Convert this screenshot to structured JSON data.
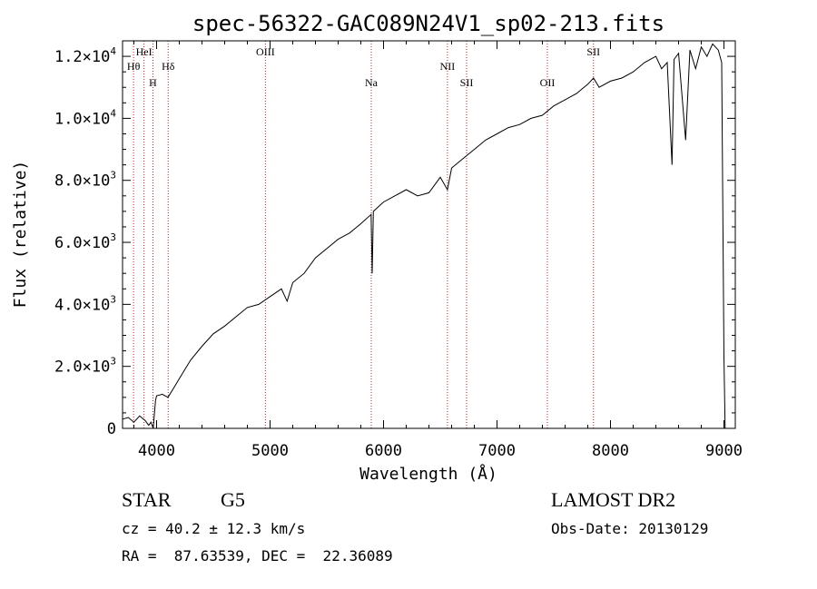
{
  "chart_data": {
    "type": "line",
    "title": "spec-56322-GAC089N24V1_sp02-213.fits",
    "xlabel": "Wavelength (Å)",
    "ylabel": "Flux (relative)",
    "xlim": [
      3700,
      9100
    ],
    "ylim": [
      0,
      12500
    ],
    "x_ticks": [
      4000,
      5000,
      6000,
      7000,
      8000,
      9000
    ],
    "y_ticks": [
      {
        "value": 0,
        "mant": "0",
        "exp": ""
      },
      {
        "value": 2000,
        "mant": "2.0×10",
        "exp": "3"
      },
      {
        "value": 4000,
        "mant": "4.0×10",
        "exp": "3"
      },
      {
        "value": 6000,
        "mant": "6.0×10",
        "exp": "3"
      },
      {
        "value": 8000,
        "mant": "8.0×10",
        "exp": "3"
      },
      {
        "value": 10000,
        "mant": "1.0×10",
        "exp": "4"
      },
      {
        "value": 12000,
        "mant": "1.2×10",
        "exp": "4"
      }
    ],
    "series": [
      {
        "x": [
          3700,
          3750,
          3800,
          3850,
          3900,
          3930,
          3950,
          3970,
          3990,
          4000,
          4050,
          4100,
          4150,
          4200,
          4300,
          4400,
          4500,
          4600,
          4700,
          4800,
          4900,
          5000,
          5100,
          5150,
          5200,
          5300,
          5400,
          5500,
          5600,
          5700,
          5800,
          5890,
          5900,
          5910,
          6000,
          6100,
          6200,
          6300,
          6400,
          6500,
          6563,
          6600,
          6700,
          6800,
          6900,
          7000,
          7100,
          7200,
          7300,
          7400,
          7500,
          7600,
          7700,
          7800,
          7850,
          7900,
          8000,
          8100,
          8200,
          8300,
          8400,
          8450,
          8500,
          8542,
          8560,
          8600,
          8662,
          8700,
          8750,
          8800,
          8850,
          8900,
          8950,
          8980,
          9000,
          9010
        ],
        "y": [
          300,
          350,
          200,
          400,
          250,
          100,
          200,
          0,
          900,
          1050,
          1100,
          1000,
          1300,
          1600,
          2200,
          2650,
          3050,
          3300,
          3600,
          3900,
          4000,
          4250,
          4500,
          4100,
          4700,
          5000,
          5500,
          5800,
          6100,
          6300,
          6600,
          6900,
          5000,
          7000,
          7300,
          7500,
          7700,
          7500,
          7600,
          8100,
          7700,
          8400,
          8700,
          9000,
          9300,
          9500,
          9700,
          9800,
          10000,
          10100,
          10400,
          10600,
          10800,
          11100,
          11300,
          11000,
          11200,
          11300,
          11500,
          11800,
          12000,
          11600,
          11800,
          8500,
          11900,
          12100,
          9300,
          12200,
          11600,
          12300,
          12000,
          12400,
          12200,
          11800,
          2300,
          0
        ]
      }
    ],
    "line_color": "#000000",
    "marker_color": "#b22222",
    "markers": [
      {
        "x": 3797,
        "label": "Hθ",
        "row": 2
      },
      {
        "x": 3889,
        "label": "HeI",
        "row": 1
      },
      {
        "x": 3968,
        "label": "H",
        "row": 3
      },
      {
        "x": 4102,
        "label": "Hδ",
        "row": 2
      },
      {
        "x": 4959,
        "label": "OIII",
        "row": 1
      },
      {
        "x": 5892,
        "label": "Na",
        "row": 3
      },
      {
        "x": 6563,
        "label": "NII",
        "row": 2
      },
      {
        "x": 6732,
        "label": "SII",
        "row": 3
      },
      {
        "x": 7444,
        "label": "OII",
        "row": 3
      },
      {
        "x": 7850,
        "label": "SII",
        "row": 1
      }
    ]
  },
  "info": {
    "object_class": "STAR",
    "subclass": "G5",
    "survey": "LAMOST DR2",
    "redshift": "cz = 40.2 ± 12.3 km/s",
    "obs_date": "Obs-Date: 20130129",
    "coords": "RA =  87.63539, DEC =  22.36089"
  }
}
